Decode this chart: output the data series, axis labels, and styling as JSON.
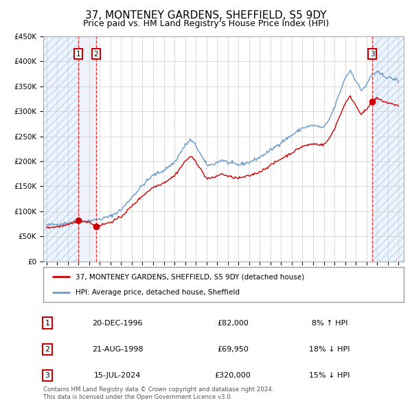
{
  "title": "37, MONTENEY GARDENS, SHEFFIELD, S5 9DY",
  "subtitle": "Price paid vs. HM Land Registry's House Price Index (HPI)",
  "title_fontsize": 11,
  "subtitle_fontsize": 9,
  "hpi_color": "#6699cc",
  "price_color": "#cc0000",
  "sale_marker_color": "#cc0000",
  "background_color": "#ffffff",
  "plot_bg_color": "#ffffff",
  "grid_color": "#cccccc",
  "ylim": [
    0,
    450000
  ],
  "yticks": [
    0,
    50000,
    100000,
    150000,
    200000,
    250000,
    300000,
    350000,
    400000,
    450000
  ],
  "ytick_labels": [
    "£0",
    "£50K",
    "£100K",
    "£150K",
    "£200K",
    "£250K",
    "£300K",
    "£350K",
    "£400K",
    "£450K"
  ],
  "xlim_start": 1993.7,
  "xlim_end": 2027.5,
  "sale1_date": 1996.97,
  "sale1_price": 82000,
  "sale2_date": 1998.64,
  "sale2_price": 69950,
  "sale3_date": 2024.54,
  "sale3_price": 320000,
  "legend_labels": [
    "37, MONTENEY GARDENS, SHEFFIELD, S5 9DY (detached house)",
    "HPI: Average price, detached house, Sheffield"
  ],
  "table_rows": [
    [
      "1",
      "20-DEC-1996",
      "£82,000",
      "8% ↑ HPI"
    ],
    [
      "2",
      "21-AUG-1998",
      "£69,950",
      "18% ↓ HPI"
    ],
    [
      "3",
      "15-JUL-2024",
      "£320,000",
      "15% ↓ HPI"
    ]
  ],
  "footer_text": "Contains HM Land Registry data © Crown copyright and database right 2024.\nThis data is licensed under the Open Government Licence v3.0.",
  "hpi_waypoints_t": [
    1994.0,
    1995.0,
    1996.0,
    1997.0,
    1998.0,
    1999.0,
    2000.0,
    2001.0,
    2002.0,
    2003.0,
    2004.0,
    2005.0,
    2006.0,
    2007.0,
    2007.5,
    2008.0,
    2008.5,
    2009.0,
    2009.5,
    2010.0,
    2010.5,
    2011.0,
    2012.0,
    2013.0,
    2014.0,
    2015.0,
    2016.0,
    2017.0,
    2018.0,
    2019.0,
    2020.0,
    2020.5,
    2021.0,
    2021.5,
    2022.0,
    2022.5,
    2023.0,
    2023.5,
    2024.0,
    2024.5,
    2025.0,
    2025.5,
    2026.0,
    2026.5,
    2027.0
  ],
  "hpi_waypoints_v": [
    72000,
    74000,
    77000,
    80000,
    81000,
    84000,
    90000,
    103000,
    128000,
    152000,
    172000,
    182000,
    198000,
    232000,
    243000,
    232000,
    212000,
    193000,
    193000,
    198000,
    203000,
    197000,
    193000,
    198000,
    208000,
    222000,
    238000,
    252000,
    267000,
    272000,
    267000,
    283000,
    308000,
    337000,
    367000,
    382000,
    362000,
    342000,
    352000,
    374000,
    378000,
    373000,
    368000,
    365000,
    362000
  ],
  "red_waypoints_t": [
    1994.0,
    1995.0,
    1996.0,
    1996.97,
    1997.5,
    1998.0,
    1998.64,
    1999.0,
    2000.0,
    2001.0,
    2002.0,
    2003.0,
    2004.0,
    2005.0,
    2006.0,
    2007.0,
    2007.5,
    2008.0,
    2008.5,
    2009.0,
    2009.5,
    2010.0,
    2010.5,
    2011.0,
    2012.0,
    2013.0,
    2014.0,
    2015.0,
    2016.0,
    2017.0,
    2018.0,
    2019.0,
    2020.0,
    2020.5,
    2021.0,
    2021.5,
    2022.0,
    2022.5,
    2023.0,
    2023.5,
    2024.0,
    2024.54,
    2025.0,
    2025.5,
    2026.0,
    2026.5,
    2027.0
  ],
  "red_waypoints_v": [
    67000,
    69000,
    72000,
    82000,
    80000,
    79000,
    69950,
    72000,
    78000,
    89000,
    110000,
    131000,
    148000,
    157000,
    171000,
    200000,
    210000,
    200000,
    183000,
    166000,
    166000,
    171000,
    175000,
    170000,
    166000,
    171000,
    179000,
    192000,
    205000,
    217000,
    230000,
    235000,
    233000,
    245000,
    265000,
    291000,
    316000,
    330000,
    312000,
    295000,
    303000,
    320000,
    326000,
    321000,
    317000,
    314000,
    312000
  ]
}
